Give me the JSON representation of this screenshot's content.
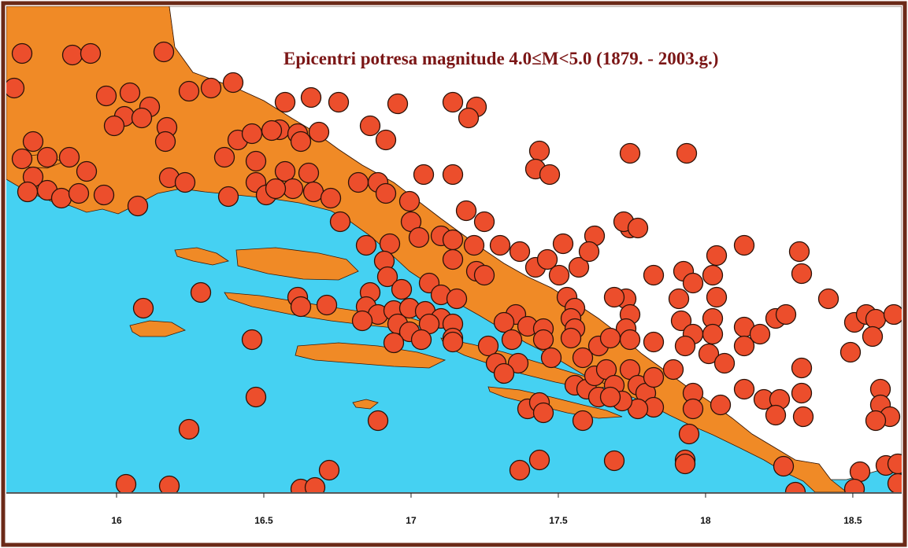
{
  "title": "Epicentri potresa magnitude 4.0≤M<5.0 (1879. - 2003.g.)",
  "colors": {
    "sea": "#45d1f2",
    "land": "#f08a26",
    "inland": "#ffffff",
    "epicenter": "#ec4e2c",
    "frame": "#6b2a18",
    "title": "#7b1616"
  },
  "x_axis": {
    "ticks": [
      16,
      16.5,
      17,
      17.5,
      18,
      18.5
    ],
    "labels": [
      "16",
      "16.5",
      "17",
      "17.5",
      "18",
      "18.5"
    ]
  },
  "magnitude_range": "4.0≤M<5.0",
  "period": "1879. - 2003.g."
}
